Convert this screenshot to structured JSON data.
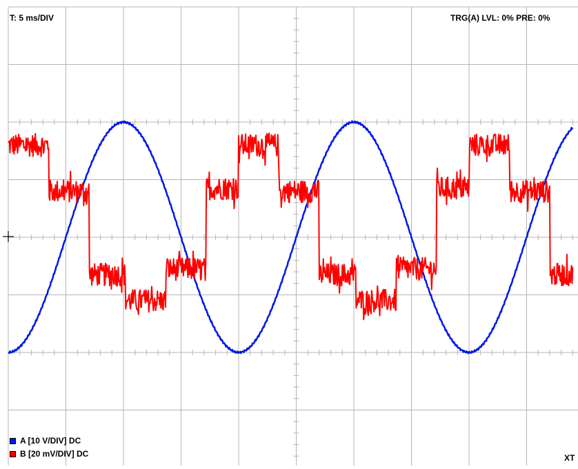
{
  "header": {
    "timebase_label": "T: 5 ms/DIV",
    "trigger_label": "TRG(A) LVL: 0% PRE: 0%"
  },
  "footer": {
    "mode_label": "XT"
  },
  "colors": {
    "grid": "#b4b4b4",
    "channel_a": "#0018e6",
    "channel_b": "#ff0000"
  },
  "chart_data": {
    "type": "line",
    "title": "",
    "xlabel": "",
    "ylabel": "",
    "grid": true,
    "divisions": {
      "x": 10,
      "y": 8
    },
    "xlim_ms": [
      0,
      50
    ],
    "ylim_div": [
      -4,
      4
    ],
    "series": [
      {
        "name": "A [10 V/DIV] DC",
        "color": "#0018e6",
        "shape": "sine",
        "amplitude_div": 2.0,
        "period_ms": 20.0,
        "offset_div": 0.0,
        "phase_ms_at_zero": 15.0
      },
      {
        "name": "B [20 mV/DIV] DC",
        "color": "#ff0000",
        "shape": "stepped",
        "levels_div": [
          1.6,
          0.8,
          -0.65,
          -1.1,
          -0.55,
          0.85
        ],
        "level_widths_ms": [
          3.5,
          3.5,
          3.2,
          3.5,
          3.5,
          2.8
        ],
        "noise_div": 0.2,
        "period_ms": 20.0
      }
    ]
  }
}
